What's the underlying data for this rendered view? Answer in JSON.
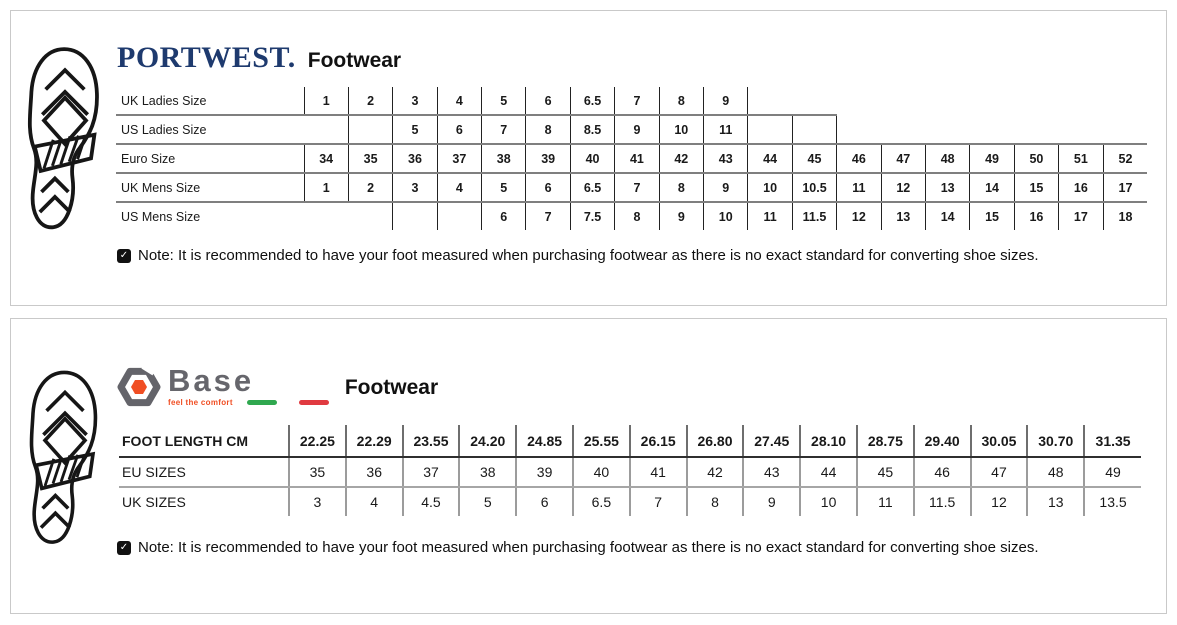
{
  "portwest": {
    "brand": "PORTWEST.",
    "heading": "Footwear",
    "rows": [
      {
        "label": "UK Ladies Size",
        "values": [
          "1",
          "2",
          "3",
          "4",
          "5",
          "6",
          "6.5",
          "7",
          "8",
          "9"
        ]
      },
      {
        "label": "US Ladies Size",
        "values": [
          "",
          "",
          "5",
          "6",
          "7",
          "8",
          "8.5",
          "9",
          "10",
          "11",
          "",
          ""
        ]
      },
      {
        "label": "Euro Size",
        "values": [
          "34",
          "35",
          "36",
          "37",
          "38",
          "39",
          "40",
          "41",
          "42",
          "43",
          "44",
          "45",
          "46",
          "47",
          "48",
          "49",
          "50",
          "51",
          "52"
        ]
      },
      {
        "label": "UK Mens Size",
        "values": [
          "1",
          "2",
          "3",
          "4",
          "5",
          "6",
          "6.5",
          "7",
          "8",
          "9",
          "10",
          "10.5",
          "11",
          "12",
          "13",
          "14",
          "15",
          "16",
          "17"
        ]
      },
      {
        "label": "US Mens Size",
        "values": [
          "",
          "",
          "6",
          "7",
          "7.5",
          "8",
          "9",
          "10",
          "11",
          "11.5",
          "12",
          "13",
          "14",
          "15",
          "16",
          "17",
          "18"
        ]
      }
    ],
    "note": "Note: It is recommended to have your foot measured when purchasing footwear as there is no exact standard for converting shoe sizes."
  },
  "base": {
    "brand": "Base",
    "tagline": "feel the comfort",
    "heading": "Footwear",
    "rows": [
      {
        "label": "FOOT LENGTH CM",
        "values": [
          "22.25",
          "22.29",
          "23.55",
          "24.20",
          "24.85",
          "25.55",
          "26.15",
          "26.80",
          "27.45",
          "28.10",
          "28.75",
          "29.40",
          "30.05",
          "30.70",
          "31.35"
        ]
      },
      {
        "label": "EU SIZES",
        "values": [
          "35",
          "36",
          "37",
          "38",
          "39",
          "40",
          "41",
          "42",
          "43",
          "44",
          "45",
          "46",
          "47",
          "48",
          "49"
        ]
      },
      {
        "label": "UK SIZES",
        "values": [
          "3",
          "4",
          "4.5",
          "5",
          "6",
          "6.5",
          "7",
          "8",
          "9",
          "10",
          "11",
          "11.5",
          "12",
          "13",
          "13.5"
        ]
      }
    ],
    "note": "Note: It is recommended to have your foot measured when purchasing footwear as there is no exact standard for converting shoe sizes."
  },
  "icons": {
    "note_check": "✓",
    "footprint": "boot-sole-print",
    "base_nut": "hex-nut"
  },
  "colors": {
    "portwest_navy": "#1e3a6e",
    "base_gray": "#66666c",
    "base_orange": "#f04e23",
    "flag_green": "#2fa84f",
    "flag_red": "#e03a40",
    "panel_border": "#c9c9c9",
    "grid_horizontal": "#7f7f7f",
    "grid_vertical": "#222222"
  }
}
